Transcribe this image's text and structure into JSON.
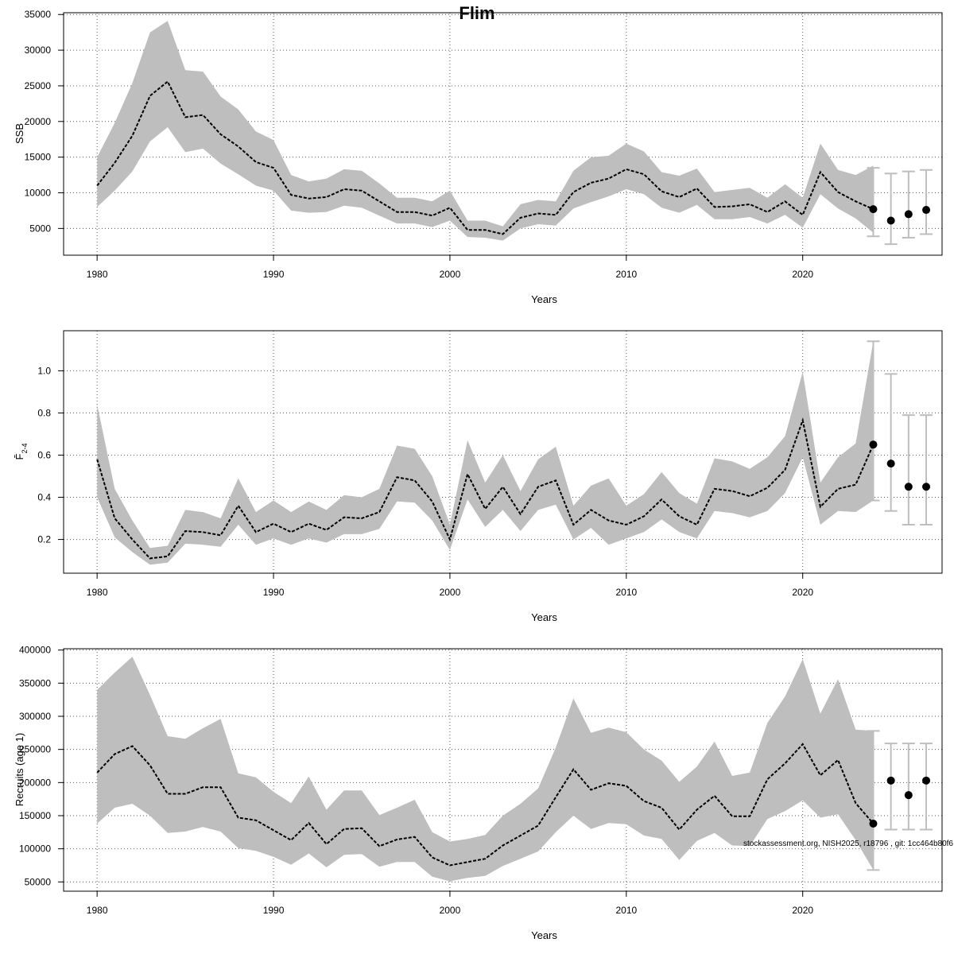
{
  "title": "Flim",
  "footer": "stockassessment.org, NISH2025, r18796 , git: 1cc464b80f6",
  "colors": {
    "band": "#bebebe",
    "line": "#000000",
    "errorbar": "#bebebe",
    "grid": "#555555"
  },
  "chart_data": [
    {
      "type": "line",
      "ylabel": "SSB",
      "xlabel": "Years",
      "xlim": [
        1978.1,
        2027.9
      ],
      "ylim": [
        1250,
        35250
      ],
      "xticks": [
        "1980",
        "1990",
        "2000",
        "2010",
        "2020"
      ],
      "yticks": [
        "5000",
        "10000",
        "15000",
        "20000",
        "25000",
        "30000",
        "35000"
      ],
      "grid": true,
      "x": [
        1980,
        1981,
        1982,
        1983,
        1984,
        1985,
        1986,
        1987,
        1988,
        1989,
        1990,
        1991,
        1992,
        1993,
        1994,
        1995,
        1996,
        1997,
        1998,
        1999,
        2000,
        2001,
        2002,
        2003,
        2004,
        2005,
        2006,
        2007,
        2008,
        2009,
        2010,
        2011,
        2012,
        2013,
        2014,
        2015,
        2016,
        2017,
        2018,
        2019,
        2020,
        2021,
        2022,
        2023,
        2024
      ],
      "estimate": [
        11000,
        14200,
        18000,
        23600,
        25600,
        20600,
        20900,
        18200,
        16500,
        14300,
        13500,
        9700,
        9200,
        9400,
        10500,
        10300,
        8800,
        7300,
        7300,
        6800,
        7900,
        4800,
        4800,
        4200,
        6500,
        7100,
        6900,
        10100,
        11400,
        12000,
        13300,
        12600,
        10200,
        9400,
        10600,
        8000,
        8100,
        8400,
        7300,
        8800,
        6900,
        12900,
        10100,
        8800,
        7700
      ],
      "lower": [
        8000,
        10300,
        13000,
        17200,
        19200,
        15700,
        16200,
        14100,
        12600,
        11000,
        10300,
        7500,
        7200,
        7300,
        8200,
        7900,
        6800,
        5700,
        5700,
        5200,
        6100,
        3800,
        3700,
        3300,
        5000,
        5600,
        5400,
        7800,
        8700,
        9500,
        10500,
        9800,
        7900,
        7200,
        8300,
        6300,
        6300,
        6600,
        5700,
        6900,
        5100,
        9800,
        7800,
        6400,
        4400
      ],
      "upper": [
        15000,
        19800,
        25400,
        32500,
        34100,
        27200,
        27000,
        23500,
        21700,
        18600,
        17400,
        12500,
        11600,
        12000,
        13300,
        13100,
        11300,
        9300,
        9300,
        8800,
        10300,
        6100,
        6100,
        5300,
        8400,
        9000,
        8800,
        13100,
        15000,
        15200,
        16900,
        15800,
        12900,
        12400,
        13400,
        10100,
        10400,
        10700,
        9300,
        11200,
        9300,
        16900,
        13200,
        12500,
        13800
      ],
      "forecast": {
        "x": [
          2024,
          2025,
          2026,
          2027
        ],
        "values": [
          7700,
          6100,
          7000,
          7600
        ],
        "lower": [
          3900,
          2800,
          3700,
          4200
        ],
        "upper": [
          13500,
          12700,
          13000,
          13200
        ]
      }
    },
    {
      "type": "line",
      "ylabel": "F̄",
      "ylabel_sub": "2-4",
      "xlabel": "Years",
      "xlim": [
        1978.1,
        2027.9
      ],
      "ylim": [
        0.04,
        1.19
      ],
      "xticks": [
        "1980",
        "1990",
        "2000",
        "2010",
        "2020"
      ],
      "yticks": [
        "0.2",
        "0.4",
        "0.6",
        "0.8",
        "1.0"
      ],
      "grid": true,
      "x": [
        1980,
        1981,
        1982,
        1983,
        1984,
        1985,
        1986,
        1987,
        1988,
        1989,
        1990,
        1991,
        1992,
        1993,
        1994,
        1995,
        1996,
        1997,
        1998,
        1999,
        2000,
        2001,
        2002,
        2003,
        2004,
        2005,
        2006,
        2007,
        2008,
        2009,
        2010,
        2011,
        2012,
        2013,
        2014,
        2015,
        2016,
        2017,
        2018,
        2019,
        2020,
        2021,
        2022,
        2023,
        2024
      ],
      "estimate": [
        0.58,
        0.3,
        0.2,
        0.11,
        0.12,
        0.24,
        0.235,
        0.22,
        0.36,
        0.235,
        0.275,
        0.235,
        0.275,
        0.245,
        0.305,
        0.3,
        0.33,
        0.495,
        0.48,
        0.38,
        0.2,
        0.51,
        0.345,
        0.45,
        0.32,
        0.45,
        0.48,
        0.27,
        0.34,
        0.29,
        0.27,
        0.31,
        0.39,
        0.31,
        0.27,
        0.44,
        0.43,
        0.405,
        0.445,
        0.53,
        0.765,
        0.355,
        0.44,
        0.46,
        0.65
      ],
      "lower": [
        0.4,
        0.21,
        0.14,
        0.08,
        0.09,
        0.18,
        0.175,
        0.165,
        0.27,
        0.175,
        0.205,
        0.175,
        0.205,
        0.185,
        0.225,
        0.225,
        0.25,
        0.38,
        0.375,
        0.29,
        0.15,
        0.39,
        0.26,
        0.34,
        0.24,
        0.34,
        0.365,
        0.2,
        0.255,
        0.175,
        0.205,
        0.235,
        0.295,
        0.235,
        0.205,
        0.335,
        0.325,
        0.305,
        0.335,
        0.42,
        0.59,
        0.27,
        0.335,
        0.33,
        0.385
      ],
      "upper": [
        0.84,
        0.44,
        0.29,
        0.16,
        0.17,
        0.34,
        0.33,
        0.3,
        0.49,
        0.33,
        0.385,
        0.33,
        0.38,
        0.34,
        0.41,
        0.4,
        0.44,
        0.645,
        0.63,
        0.5,
        0.27,
        0.67,
        0.47,
        0.6,
        0.43,
        0.58,
        0.64,
        0.36,
        0.455,
        0.49,
        0.36,
        0.415,
        0.52,
        0.42,
        0.37,
        0.585,
        0.57,
        0.535,
        0.59,
        0.69,
        0.995,
        0.47,
        0.59,
        0.655,
        1.14
      ],
      "forecast": {
        "x": [
          2024,
          2025,
          2026,
          2027
        ],
        "values": [
          0.65,
          0.56,
          0.45,
          0.45
        ],
        "lower": [
          0.385,
          0.335,
          0.27,
          0.27
        ],
        "upper": [
          1.14,
          0.985,
          0.79,
          0.79
        ]
      }
    },
    {
      "type": "line",
      "ylabel": "Recruits (age 1)",
      "xlabel": "Years",
      "xlim": [
        1978.1,
        2027.9
      ],
      "ylim": [
        36000,
        402000
      ],
      "xticks": [
        "1980",
        "1990",
        "2000",
        "2010",
        "2020"
      ],
      "yticks": [
        "50000",
        "100000",
        "150000",
        "200000",
        "250000",
        "300000",
        "350000",
        "400000"
      ],
      "grid": true,
      "x": [
        1980,
        1981,
        1982,
        1983,
        1984,
        1985,
        1986,
        1987,
        1988,
        1989,
        1990,
        1991,
        1992,
        1993,
        1994,
        1995,
        1996,
        1997,
        1998,
        1999,
        2000,
        2001,
        2002,
        2003,
        2004,
        2005,
        2006,
        2007,
        2008,
        2009,
        2010,
        2011,
        2012,
        2013,
        2014,
        2015,
        2016,
        2017,
        2018,
        2019,
        2020,
        2021,
        2022,
        2023,
        2024
      ],
      "estimate": [
        215000,
        243000,
        255000,
        226000,
        183000,
        183000,
        193000,
        193000,
        147000,
        143000,
        128000,
        113000,
        139000,
        107000,
        130000,
        131000,
        104000,
        114000,
        118000,
        87000,
        75000,
        80000,
        85000,
        105000,
        120000,
        135000,
        178000,
        220000,
        189000,
        199000,
        195000,
        172000,
        162000,
        129000,
        159000,
        180000,
        149000,
        149000,
        205000,
        229000,
        258000,
        211000,
        234000,
        169000,
        138000
      ],
      "lower": [
        138000,
        162000,
        168000,
        150000,
        124000,
        126000,
        133000,
        126000,
        101000,
        97000,
        88000,
        76000,
        93000,
        72000,
        91000,
        92000,
        73000,
        80000,
        80000,
        58000,
        51000,
        56000,
        59000,
        74000,
        85000,
        96000,
        125000,
        150000,
        130000,
        139000,
        137000,
        120000,
        115000,
        83000,
        112000,
        124000,
        105000,
        104000,
        145000,
        157000,
        173000,
        147000,
        152000,
        113000,
        68000
      ],
      "upper": [
        340000,
        366000,
        390000,
        332000,
        270000,
        266000,
        282000,
        296000,
        214000,
        208000,
        186000,
        169000,
        209000,
        159000,
        188000,
        188000,
        151000,
        162000,
        174000,
        125000,
        111000,
        115000,
        121000,
        150000,
        168000,
        191000,
        253000,
        327000,
        275000,
        283000,
        276000,
        250000,
        233000,
        201000,
        224000,
        262000,
        210000,
        215000,
        290000,
        330000,
        386000,
        304000,
        356000,
        280000,
        278000
      ],
      "forecast": {
        "x": [
          2024,
          2025,
          2026,
          2027
        ],
        "values": [
          138000,
          203000,
          181000,
          203000
        ],
        "lower": [
          68000,
          129000,
          129000,
          129000
        ],
        "upper": [
          278000,
          259000,
          259000,
          259000
        ]
      }
    }
  ]
}
